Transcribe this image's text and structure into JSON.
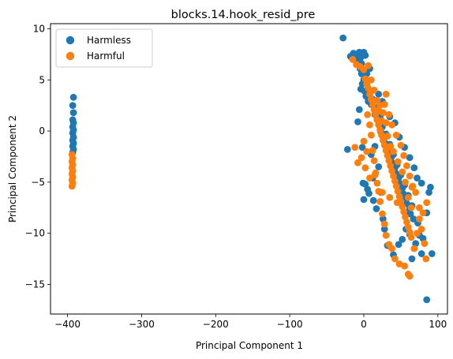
{
  "chart_data": {
    "type": "scatter",
    "title": "blocks.14.hook_resid_pre",
    "xlabel": "Principal Component 1",
    "ylabel": "Principal Component 2",
    "xlim": [
      -423,
      113
    ],
    "ylim": [
      -17.9,
      10.5
    ],
    "xticks": [
      -400,
      -300,
      -200,
      -100,
      0,
      100
    ],
    "yticks": [
      -15,
      -10,
      -5,
      0,
      5,
      10
    ],
    "xtick_labels": [
      "−400",
      "−300",
      "−200",
      "−100",
      "0",
      "100"
    ],
    "ytick_labels": [
      "−15",
      "−10",
      "−5",
      "0",
      "5",
      "10"
    ],
    "grid": false,
    "legend_position": "top-left",
    "series": [
      {
        "name": "Harmless",
        "color": "#1f77b4",
        "points": [
          [
            -392,
            3.3
          ],
          [
            -393,
            2.5
          ],
          [
            -392,
            1.8
          ],
          [
            -393,
            1.1
          ],
          [
            -392,
            0.8
          ],
          [
            -393,
            0.4
          ],
          [
            -392,
            0.1
          ],
          [
            -393,
            -0.2
          ],
          [
            -392,
            -0.6
          ],
          [
            -393,
            -0.9
          ],
          [
            -392,
            -1.2
          ],
          [
            -393,
            -1.5
          ],
          [
            -392,
            -1.8
          ],
          [
            -393,
            -2.1
          ],
          [
            -28,
            9.1
          ],
          [
            -22,
            -1.8
          ],
          [
            -18,
            7.3
          ],
          [
            -14,
            7.6
          ],
          [
            -10,
            7.0
          ],
          [
            -8,
            7.5
          ],
          [
            -6,
            7.7
          ],
          [
            -4,
            7.2
          ],
          [
            -3,
            6.6
          ],
          [
            -2,
            7.6
          ],
          [
            0,
            7.7
          ],
          [
            2,
            7.4
          ],
          [
            -5,
            6.1
          ],
          [
            -3,
            5.6
          ],
          [
            -2,
            4.6
          ],
          [
            0,
            5.0
          ],
          [
            1,
            3.9
          ],
          [
            3,
            3.4
          ],
          [
            5,
            4.1
          ],
          [
            6,
            2.9
          ],
          [
            8,
            3.6
          ],
          [
            10,
            2.6
          ],
          [
            12,
            3.1
          ],
          [
            14,
            2.1
          ],
          [
            15,
            1.6
          ],
          [
            17,
            2.3
          ],
          [
            18,
            1.1
          ],
          [
            20,
            0.6
          ],
          [
            22,
            1.4
          ],
          [
            23,
            -0.1
          ],
          [
            25,
            0.4
          ],
          [
            27,
            -0.6
          ],
          [
            28,
            -1.1
          ],
          [
            30,
            -0.3
          ],
          [
            32,
            -1.6
          ],
          [
            33,
            -2.1
          ],
          [
            35,
            -1.3
          ],
          [
            37,
            -2.6
          ],
          [
            38,
            -3.1
          ],
          [
            40,
            -2.3
          ],
          [
            42,
            -3.6
          ],
          [
            43,
            -4.1
          ],
          [
            45,
            -3.3
          ],
          [
            47,
            -4.6
          ],
          [
            48,
            -5.1
          ],
          [
            50,
            -4.3
          ],
          [
            52,
            -5.6
          ],
          [
            53,
            -6.1
          ],
          [
            55,
            -5.3
          ],
          [
            57,
            -6.6
          ],
          [
            58,
            -7.1
          ],
          [
            60,
            -6.3
          ],
          [
            62,
            -7.6
          ],
          [
            63,
            -8.1
          ],
          [
            65,
            -7.3
          ],
          [
            67,
            -8.6
          ],
          [
            -2,
            -1.6
          ],
          [
            -1,
            -5.1
          ],
          [
            0,
            -6.7
          ],
          [
            2,
            -5.2
          ],
          [
            5,
            -5.7
          ],
          [
            7,
            -6.1
          ],
          [
            10,
            -2.3
          ],
          [
            12,
            -4.6
          ],
          [
            13,
            -6.8
          ],
          [
            15,
            -1.5
          ],
          [
            17,
            -7.6
          ],
          [
            20,
            -3.5
          ],
          [
            23,
            -6.0
          ],
          [
            26,
            -8.6
          ],
          [
            28,
            -9.6
          ],
          [
            32,
            -11.2
          ],
          [
            40,
            -12.1
          ],
          [
            47,
            -11.1
          ],
          [
            52,
            -10.6
          ],
          [
            57,
            -9.6
          ],
          [
            60,
            -8.1
          ],
          [
            62,
            -10.1
          ],
          [
            65,
            -12.5
          ],
          [
            70,
            -11.0
          ],
          [
            73,
            -9.0
          ],
          [
            75,
            -10.2
          ],
          [
            78,
            -12.0
          ],
          [
            80,
            -10.5
          ],
          [
            85,
            -8.0
          ],
          [
            88,
            -6.0
          ],
          [
            90,
            -5.5
          ],
          [
            92,
            -12.0
          ],
          [
            85,
            -16.5
          ],
          [
            -8,
            0.9
          ],
          [
            -6,
            2.1
          ],
          [
            -4,
            4.1
          ],
          [
            20,
            3.6
          ],
          [
            25,
            2.9
          ],
          [
            35,
            1.4
          ],
          [
            42,
            0.8
          ],
          [
            48,
            -0.6
          ],
          [
            55,
            -1.6
          ],
          [
            62,
            -2.6
          ],
          [
            68,
            -3.6
          ],
          [
            72,
            -4.6
          ],
          [
            78,
            -5.1
          ],
          [
            8,
            6.1
          ],
          [
            4,
            5.6
          ]
        ]
      },
      {
        "name": "Harmful",
        "color": "#ff7f0e",
        "points": [
          [
            -394,
            -2.3
          ],
          [
            -393,
            -2.7
          ],
          [
            -394,
            -3.0
          ],
          [
            -393,
            -3.3
          ],
          [
            -394,
            -3.6
          ],
          [
            -393,
            -3.9
          ],
          [
            -394,
            -4.2
          ],
          [
            -393,
            -4.5
          ],
          [
            -394,
            -4.8
          ],
          [
            -393,
            -5.1
          ],
          [
            -394,
            -5.4
          ],
          [
            -15,
            7.0
          ],
          [
            -10,
            6.5
          ],
          [
            -5,
            6.3
          ],
          [
            0,
            6.0
          ],
          [
            2,
            5.1
          ],
          [
            4,
            4.6
          ],
          [
            6,
            4.2
          ],
          [
            8,
            3.6
          ],
          [
            10,
            3.1
          ],
          [
            12,
            2.6
          ],
          [
            14,
            2.1
          ],
          [
            16,
            1.6
          ],
          [
            18,
            1.1
          ],
          [
            20,
            0.6
          ],
          [
            22,
            0.1
          ],
          [
            24,
            -0.4
          ],
          [
            26,
            -0.9
          ],
          [
            28,
            -1.4
          ],
          [
            30,
            -1.9
          ],
          [
            32,
            -2.4
          ],
          [
            34,
            -2.9
          ],
          [
            36,
            -3.4
          ],
          [
            38,
            -3.9
          ],
          [
            40,
            -4.4
          ],
          [
            42,
            -4.9
          ],
          [
            44,
            -5.4
          ],
          [
            46,
            -5.9
          ],
          [
            48,
            -6.4
          ],
          [
            50,
            -6.9
          ],
          [
            52,
            -7.4
          ],
          [
            54,
            -7.9
          ],
          [
            56,
            -8.4
          ],
          [
            58,
            -8.9
          ],
          [
            60,
            -9.4
          ],
          [
            62,
            -9.9
          ],
          [
            64,
            -10.4
          ],
          [
            5,
            1.6
          ],
          [
            8,
            0.6
          ],
          [
            10,
            -0.4
          ],
          [
            12,
            -1.9
          ],
          [
            14,
            -2.9
          ],
          [
            16,
            -4.1
          ],
          [
            18,
            -5.1
          ],
          [
            20,
            -5.9
          ],
          [
            22,
            -6.9
          ],
          [
            25,
            -8.1
          ],
          [
            28,
            -9.1
          ],
          [
            30,
            -10.2
          ],
          [
            34,
            -11.1
          ],
          [
            38,
            -11.5
          ],
          [
            42,
            -12.5
          ],
          [
            48,
            -13.0
          ],
          [
            55,
            -13.2
          ],
          [
            60,
            -14.0
          ],
          [
            62,
            -14.2
          ],
          [
            68,
            -11.5
          ],
          [
            72,
            -10.0
          ],
          [
            75,
            -8.6
          ],
          [
            78,
            -9.6
          ],
          [
            82,
            -11.0
          ],
          [
            84,
            -12.5
          ],
          [
            80,
            -8.0
          ],
          [
            85,
            -7.0
          ],
          [
            75,
            -7.5
          ],
          [
            70,
            -6.0
          ],
          [
            65,
            -5.5
          ],
          [
            30,
            3.6
          ],
          [
            28,
            2.6
          ],
          [
            34,
            1.6
          ],
          [
            38,
            0.6
          ],
          [
            44,
            -0.4
          ],
          [
            50,
            -1.4
          ],
          [
            54,
            -2.4
          ],
          [
            58,
            -3.4
          ],
          [
            62,
            -4.4
          ],
          [
            66,
            -5.4
          ],
          [
            -12,
            -1.6
          ],
          [
            -8,
            -3.1
          ],
          [
            -3,
            -2.6
          ],
          [
            2,
            -3.6
          ],
          [
            8,
            -4.6
          ],
          [
            15,
            -4.3
          ],
          [
            25,
            -6.0
          ],
          [
            35,
            -6.5
          ],
          [
            45,
            -7.0
          ],
          [
            24,
            1.0
          ],
          [
            20,
            2.0
          ],
          [
            32,
            -0.5
          ],
          [
            36,
            -1.5
          ],
          [
            40,
            -2.0
          ],
          [
            46,
            -3.0
          ],
          [
            52,
            -4.0
          ],
          [
            56,
            -5.0
          ],
          [
            60,
            -6.5
          ],
          [
            64,
            -7.5
          ],
          [
            6,
            6.4
          ],
          [
            10,
            5.0
          ],
          [
            14,
            4.0
          ],
          [
            18,
            3.0
          ],
          [
            22,
            2.5
          ],
          [
            26,
            1.8
          ],
          [
            30,
            0.8
          ],
          [
            0,
            -1.0
          ],
          [
            4,
            -2.0
          ]
        ]
      }
    ]
  }
}
